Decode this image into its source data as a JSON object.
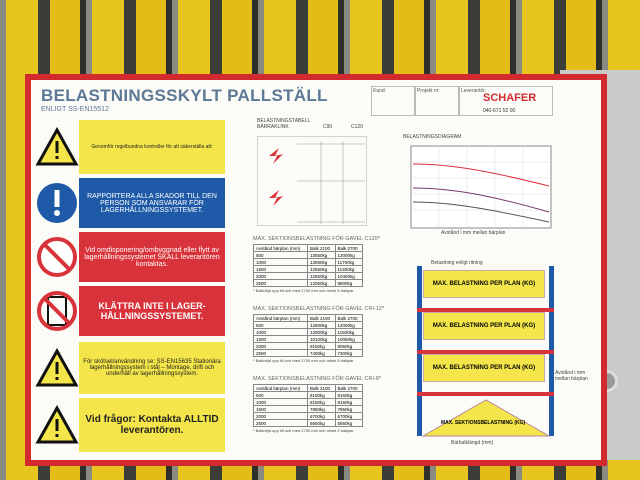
{
  "header": {
    "title": "BELASTNINGSSKYLT PALLSTÄLL",
    "subtitle": "ENLIGT SS-EN15512",
    "fields": [
      "Kund:",
      "Projekt nr:",
      "Leverantör:"
    ],
    "logo": "SCHAFER",
    "phone": "040-671 52 00"
  },
  "notices": [
    {
      "text": "Genomför regelbundna kontroller för att säkerställa att:"
    },
    {
      "text": "RAPPORTERA ALLA SKADOR TILL DEN PERSON SOM ANSVARAR FÖR LAGERHÅLLNINGSSYSTEMET."
    },
    {
      "text": "Vid omdisponering/ombyggnad eller flytt av lagerhållningssystemet SKALL leverantören kontaktas."
    },
    {
      "text": "KLÄTTRA INTE I LAGER-HÅLLNINGSSYSTEMET."
    },
    {
      "text": "För skötsel/användning se: SS-EN15635 Stationära lagerhållningssystem i stål – Montage, drift och underhåll av lagerhållningssystem."
    },
    {
      "text": "Vid frågor: Kontakta ALLTID leverantören."
    }
  ],
  "load_table": {
    "title": "BELASTNINGSTABELL BÄRRAKLINK",
    "profiles": [
      "C90",
      "C120"
    ]
  },
  "diagram": {
    "title": "BELASTNINGSDIAGRAM",
    "xlabel": "Avstånd i mm mellan bärplan"
  },
  "section_tables": [
    {
      "title": "MAX. SEKTIONSBELASTNING FÖR GAVEL C120*",
      "columns": [
        "Avstånd bärplan (mm)",
        "Balk 2100",
        "Balk 2700"
      ],
      "rows": [
        [
          "500",
          "13550kg",
          "12000kg"
        ],
        [
          "1000",
          "13550kg",
          "11700kg"
        ],
        [
          "1500",
          "12550kg",
          "11300kg"
        ],
        [
          "2000",
          "12550kg",
          "10400kg"
        ],
        [
          "2500",
          "12050kg",
          "9800kg"
        ]
      ],
      "note": "* Balkhöjd upp till och med 2700 mm och minst 5 balkpar"
    },
    {
      "title": "MAX. SEKTIONSBELASTNING FÖR GAVEL CRI-12*",
      "columns": [
        "Avstånd bärplan (mm)",
        "Balk 2100",
        "Balk 2700"
      ],
      "rows": [
        [
          "500",
          "12800kg",
          "12000kg"
        ],
        [
          "1000",
          "12000kg",
          "11500kg"
        ],
        [
          "1500",
          "10100kg",
          "10050kg"
        ],
        [
          "2000",
          "9150kg",
          "9050kg"
        ],
        [
          "2500",
          "7400kg",
          "7300kg"
        ]
      ],
      "note": "* Balkhöjd upp till och med 2700 mm och minst 5 balkpar"
    },
    {
      "title": "MAX. SEKTIONSBELASTNING FÖR GAVEL CRI-8*",
      "columns": [
        "Avstånd bärplan (mm)",
        "Balk 2100",
        "Balk 2700"
      ],
      "rows": [
        [
          "500",
          "8150kg",
          "8150kg"
        ],
        [
          "1000",
          "8150kg",
          "8150kg"
        ],
        [
          "1500",
          "7850kg",
          "7850kg"
        ],
        [
          "2000",
          "6700kg",
          "6700kg"
        ],
        [
          "2500",
          "5650kg",
          "5650kg"
        ]
      ],
      "note": "* Balkhöjd upp till och med 2700 mm och minst 2 balkpar"
    }
  ],
  "rack": {
    "top": "Belastning enligt ritning",
    "levels": [
      "MAX. BELASTNING PER PLAN (KG)",
      "MAX. BELASTNING PER PLAN (KG)",
      "MAX. BELASTNING PER PLAN (KG)"
    ],
    "bottom": "MAX. SEKTIONSBELASTNING (KG)",
    "side": "Avstånd i mm mellan bärplan",
    "width": "Bärbalklängd (mm)"
  }
}
